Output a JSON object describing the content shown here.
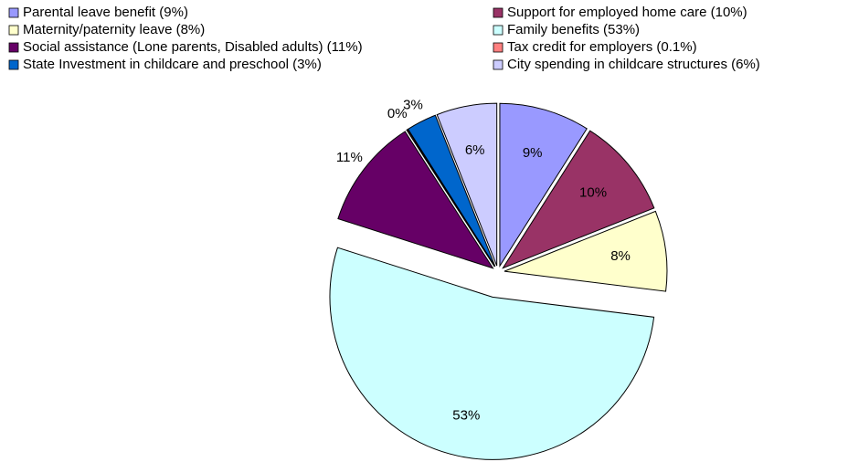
{
  "chart_data": {
    "type": "pie",
    "categories": [
      "Parental leave benefit (9%)",
      "Support for employed home care (10%)",
      "Maternity/paternity leave (8%)",
      "Family benefits (53%)",
      "Social assistance (Lone parents, Disabled adults) (11%)",
      "Tax credit for employers (0.1%)",
      "State Investment in childcare and preschool (3%)",
      "City spending in childcare structures (6%)"
    ],
    "values": [
      9,
      10,
      8,
      53,
      11,
      0.1,
      3,
      6
    ],
    "value_labels": [
      "9%",
      "10%",
      "8%",
      "53%",
      "11%",
      "0%",
      "3%",
      "6%"
    ],
    "colors": [
      "#9999ff",
      "#993366",
      "#ffffcc",
      "#ccffff",
      "#660066",
      "#ff8080",
      "#0066cc",
      "#ccccff"
    ],
    "legend": "top"
  }
}
